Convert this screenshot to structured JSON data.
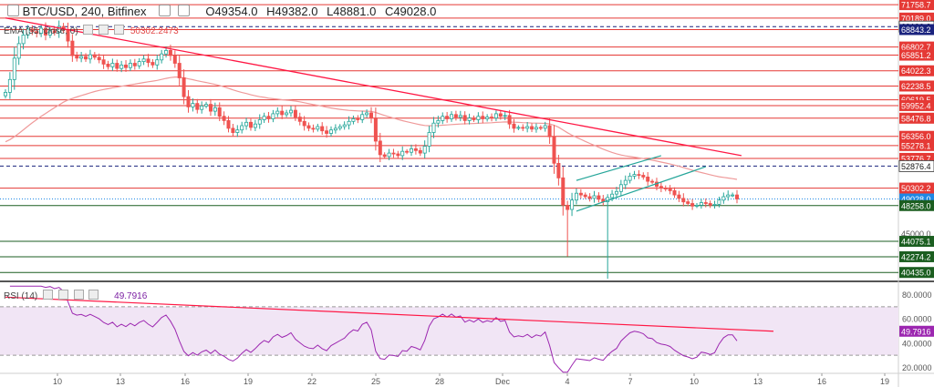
{
  "header": {
    "symbol": "BTC/USD, 240, Bitfinex",
    "ohlc": [
      "O49354.0",
      "H49382.0",
      "L48881.0",
      "C49028.0"
    ]
  },
  "ma_legend": {
    "label": "EMA (55, close, 0)",
    "value": "50302.2473"
  },
  "rsi_legend": {
    "label": "RSI (14)",
    "value": "49.7916"
  },
  "colors": {
    "up": "#26a69a",
    "down": "#ef5350",
    "candle_body_up": "#ffffff",
    "level_red": "#e53935",
    "level_green": "#1b5e20",
    "ma": "#ef9a9a",
    "trendline": "#ff1744",
    "channel": "#26a69a",
    "rsi_line": "#9c27b0",
    "rsi_band": "#f1e5f5",
    "last_price": "#1e88e5"
  },
  "chart_data": [
    {
      "type": "candlestick",
      "title": "BTC/USD, 240, Bitfinex",
      "ylim": [
        39500,
        72300
      ],
      "price_axis_labels": [
        "71758.7",
        "70189.0",
        "69190.2",
        "68843.2",
        "66802.7",
        "65851.2",
        "64022.3",
        "62238.5",
        "60619.5",
        "59952.4",
        "58476.8",
        "56356.0",
        "55278.1",
        "53776.7",
        "52876.4",
        "50302.2",
        "49028.0",
        "48258.0",
        "45000.0",
        "44075.1",
        "42274.2",
        "40435.0"
      ],
      "resistance_levels_red": [
        71758.7,
        70189.0,
        68843.2,
        66802.7,
        65851.2,
        64022.3,
        62238.5,
        60619.5,
        59952.4,
        58476.8,
        56356.0,
        55278.1,
        53776.7,
        50302.2
      ],
      "support_levels_green": [
        48258.0,
        44075.1,
        42274.2,
        40435.0
      ],
      "dashed_levels": [
        69190.2,
        52876.4
      ],
      "last_price": 49028.0,
      "ema": {
        "period": 55,
        "last": 50302.2473
      },
      "x_ticks": [
        "10",
        "13",
        "16",
        "19",
        "22",
        "25",
        "28",
        "Dec",
        "4",
        "7",
        "10",
        "13",
        "16",
        "19"
      ],
      "closes": [
        61500,
        63000,
        65500,
        67200,
        68200,
        68900,
        68600,
        68400,
        69000,
        68200,
        68700,
        68500,
        69200,
        68800,
        67500,
        65800,
        65500,
        65700,
        65400,
        65900,
        65600,
        65300,
        64800,
        64500,
        64900,
        64300,
        64700,
        64400,
        64900,
        64600,
        65100,
        65400,
        65000,
        64700,
        65300,
        66000,
        66400,
        65800,
        64900,
        63200,
        61000,
        59800,
        60200,
        59500,
        59900,
        60100,
        59300,
        59700,
        58700,
        58200,
        57300,
        56800,
        57100,
        57600,
        58000,
        57400,
        57800,
        58300,
        58700,
        58400,
        59000,
        59300,
        58900,
        59100,
        59400,
        58600,
        58100,
        57600,
        57300,
        57200,
        57500,
        57000,
        56700,
        57100,
        57300,
        57500,
        57700,
        58100,
        58400,
        58300,
        58900,
        59100,
        58500,
        55800,
        54200,
        54000,
        54400,
        54300,
        54100,
        54600,
        54500,
        54900,
        54700,
        54400,
        55200,
        56800,
        57900,
        58200,
        58700,
        58400,
        58900,
        58600,
        58800,
        58200,
        58500,
        58300,
        58700,
        58400,
        58600,
        58500,
        59000,
        58700,
        58800,
        57800,
        57300,
        57400,
        57300,
        57500,
        57200,
        57400,
        57300,
        57600,
        56300,
        53200,
        51500,
        48300,
        47800,
        48900,
        49700,
        49500,
        49300,
        49100,
        49400,
        49000,
        48700,
        49200,
        49600,
        49900,
        50700,
        51200,
        51700,
        51900,
        51800,
        51600,
        51100,
        51000,
        50500,
        50300,
        50200,
        50000,
        49500,
        49100,
        48700,
        48500,
        48200,
        48300,
        48600,
        48500,
        48300,
        48400,
        48900,
        49300,
        49500,
        49500,
        49028
      ]
    },
    {
      "type": "line",
      "title": "RSI (14)",
      "ylim": [
        15,
        88
      ],
      "y_ticks": [
        "80.0000",
        "60.0000",
        "40.0000",
        "20.0000"
      ],
      "band": [
        30,
        70
      ],
      "last": 49.7916,
      "last_label": "49.7916"
    }
  ]
}
